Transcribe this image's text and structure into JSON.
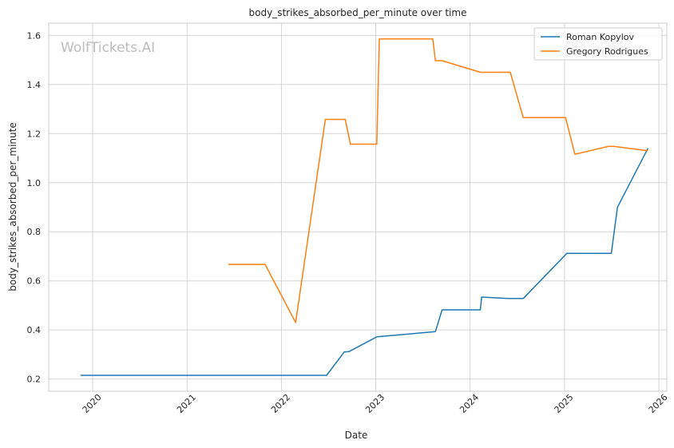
{
  "chart_data": {
    "type": "line",
    "title": "body_strikes_absorbed_per_minute over time",
    "xlabel": "Date",
    "ylabel": "body_strikes_absorbed_per_minute",
    "watermark": "WolfTickets.AI",
    "xlim": [
      "2019-07-15",
      "2026-02-01"
    ],
    "ylim": [
      0.15,
      1.65
    ],
    "x_ticks": [
      "2020-01-01",
      "2021-01-01",
      "2022-01-01",
      "2023-01-01",
      "2024-01-01",
      "2025-01-01",
      "2026-01-01"
    ],
    "x_tick_labels": [
      "2020",
      "2021",
      "2022",
      "2023",
      "2024",
      "2025",
      "2026"
    ],
    "y_ticks": [
      0.2,
      0.4,
      0.6,
      0.8,
      1.0,
      1.2,
      1.4,
      1.6
    ],
    "y_tick_labels": [
      "0.2",
      "0.4",
      "0.6",
      "0.8",
      "1.0",
      "1.2",
      "1.4",
      "1.6"
    ],
    "grid": true,
    "legend_position": "top-right",
    "series": [
      {
        "name": "Roman Kopylov",
        "color": "#1f77b4",
        "points": [
          {
            "x": "2019-11-15",
            "y": 0.215
          },
          {
            "x": "2022-06-25",
            "y": 0.215
          },
          {
            "x": "2022-09-01",
            "y": 0.31
          },
          {
            "x": "2022-09-20",
            "y": 0.312
          },
          {
            "x": "2023-01-05",
            "y": 0.372
          },
          {
            "x": "2023-08-20",
            "y": 0.393
          },
          {
            "x": "2023-09-15",
            "y": 0.482
          },
          {
            "x": "2024-02-10",
            "y": 0.482
          },
          {
            "x": "2024-02-15",
            "y": 0.534
          },
          {
            "x": "2024-06-01",
            "y": 0.528
          },
          {
            "x": "2024-07-25",
            "y": 0.528
          },
          {
            "x": "2025-01-10",
            "y": 0.712
          },
          {
            "x": "2025-07-01",
            "y": 0.712
          },
          {
            "x": "2025-07-25",
            "y": 0.9
          },
          {
            "x": "2025-11-20",
            "y": 1.14
          }
        ]
      },
      {
        "name": "Gregory Rodrigues",
        "color": "#ff7f0e",
        "points": [
          {
            "x": "2021-06-10",
            "y": 0.667
          },
          {
            "x": "2021-10-30",
            "y": 0.667
          },
          {
            "x": "2022-02-25",
            "y": 0.43
          },
          {
            "x": "2022-06-20",
            "y": 1.258
          },
          {
            "x": "2022-09-05",
            "y": 1.258
          },
          {
            "x": "2022-09-25",
            "y": 1.157
          },
          {
            "x": "2023-01-05",
            "y": 1.157
          },
          {
            "x": "2023-01-15",
            "y": 1.586
          },
          {
            "x": "2023-08-10",
            "y": 1.586
          },
          {
            "x": "2023-08-20",
            "y": 1.497
          },
          {
            "x": "2023-09-15",
            "y": 1.497
          },
          {
            "x": "2024-02-10",
            "y": 1.45
          },
          {
            "x": "2024-06-05",
            "y": 1.45
          },
          {
            "x": "2024-07-25",
            "y": 1.265
          },
          {
            "x": "2025-01-05",
            "y": 1.265
          },
          {
            "x": "2025-02-10",
            "y": 1.116
          },
          {
            "x": "2025-06-20",
            "y": 1.148
          },
          {
            "x": "2025-07-10",
            "y": 1.148
          },
          {
            "x": "2025-11-20",
            "y": 1.13
          }
        ]
      }
    ]
  }
}
